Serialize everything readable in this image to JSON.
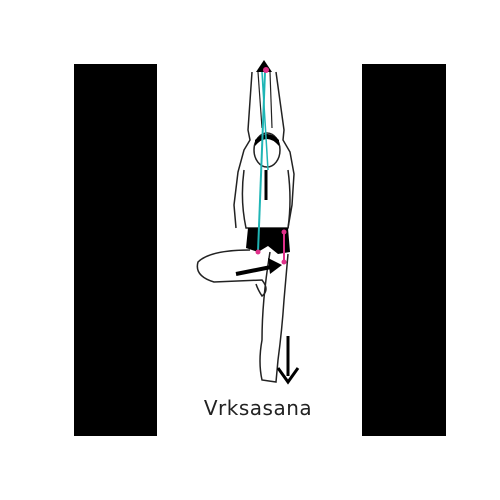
{
  "caption": {
    "text": "Vrksasana"
  },
  "colors": {
    "background": "#ffffff",
    "bars": "#000000",
    "outline": "#222222",
    "pelvis_line": "#e0308a",
    "spine_line": "#1fb5b5",
    "arrow": "#000000"
  },
  "icons": {
    "figure": "tree-pose-figure",
    "foot_arrow": "arrow-down-icon",
    "knee_arrow": "arrow-right-icon"
  }
}
